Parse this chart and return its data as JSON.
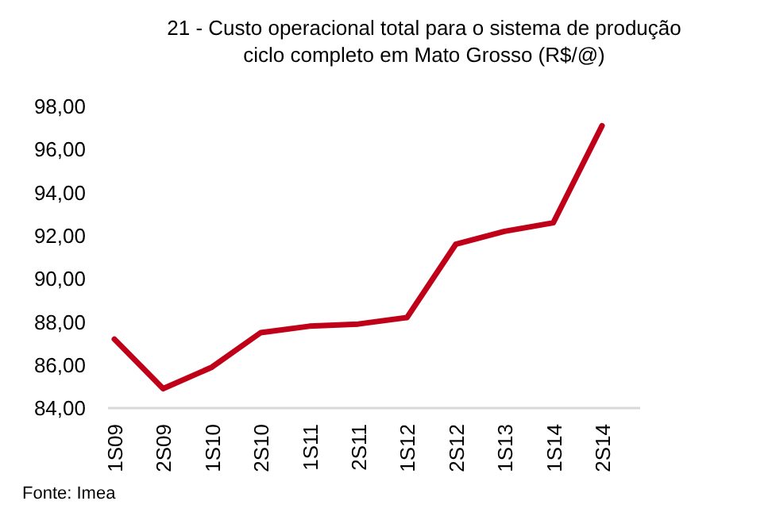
{
  "chart_data": {
    "type": "line",
    "title": "21 - Custo operacional total para o sistema de produção\nciclo completo em Mato Grosso (R$/@)",
    "categories": [
      "1S09",
      "2S09",
      "1S10",
      "2S10",
      "1S11",
      "2S11",
      "1S12",
      "2S12",
      "1S13",
      "1S14",
      "2S14"
    ],
    "series": [
      {
        "color": "#c00018",
        "values": [
          87.2,
          84.9,
          85.9,
          87.5,
          87.8,
          87.9,
          88.2,
          91.6,
          92.2,
          92.6,
          97.1
        ]
      }
    ],
    "ylim": [
      84,
      98
    ],
    "yticks": [
      {
        "value": 84,
        "label": "84,00"
      },
      {
        "value": 86,
        "label": "86,00"
      },
      {
        "value": 88,
        "label": "88,00"
      },
      {
        "value": 90,
        "label": "90,00"
      },
      {
        "value": 92,
        "label": "92,00"
      },
      {
        "value": 94,
        "label": "94,00"
      },
      {
        "value": 96,
        "label": "96,00"
      },
      {
        "value": 98,
        "label": "98,00"
      }
    ],
    "grid": false,
    "marker": "none",
    "line_style": "solid",
    "annotations": [
      "Fonte: Imea"
    ]
  }
}
